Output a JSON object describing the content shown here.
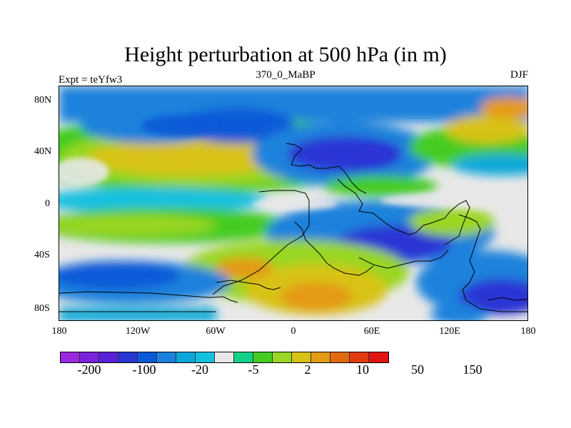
{
  "title": "Height perturbation at 500 hPa (in m)",
  "left_label": "Expt = teYfw3",
  "center_label": "370_0_MaBP",
  "right_label": "DJF",
  "axes": {
    "lat_ticks": [
      "80N",
      "40N",
      "0",
      "40S",
      "80S"
    ],
    "lon_ticks": [
      "180",
      "120W",
      "60W",
      "0",
      "60E",
      "120E",
      "180"
    ]
  },
  "colorbar": {
    "colors": [
      "#9a2ae0",
      "#7a22dc",
      "#5a22d6",
      "#2a36d4",
      "#0a5ad8",
      "#1a82dc",
      "#0aa8d8",
      "#12c0e0",
      "#e8e8e8",
      "#12d08a",
      "#44cc22",
      "#9ad624",
      "#d8c216",
      "#e49a14",
      "#e06a10",
      "#e03c10",
      "#e01410"
    ],
    "labels": [
      "-200",
      "-100",
      "-20",
      "-5",
      "2",
      "10",
      "50",
      "150"
    ]
  },
  "chart_data": {
    "type": "heatmap",
    "title": "Height perturbation at 500 hPa (in m)",
    "subtitle": "370_0_MaBP",
    "annotations": [
      "Expt = teYfw3",
      "DJF"
    ],
    "x_ticks": [
      "180",
      "120W",
      "60W",
      "0",
      "60E",
      "120E",
      "180"
    ],
    "y_ticks": [
      "80N",
      "40N",
      "0",
      "40S",
      "80S"
    ],
    "levels": [
      -200,
      -100,
      -20,
      -5,
      2,
      10,
      50,
      150
    ]
  }
}
